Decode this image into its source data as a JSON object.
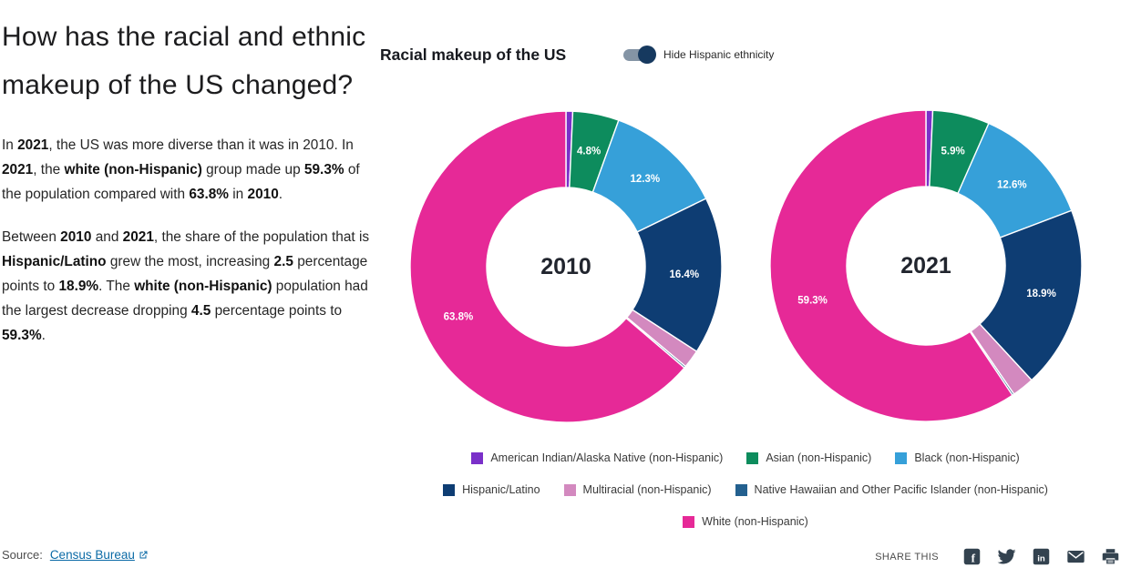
{
  "left": {
    "heading": "How has the racial and ethnic makeup of the US changed?",
    "paragraphs": [
      {
        "segments": [
          {
            "t": "In "
          },
          {
            "t": "2021",
            "b": 1
          },
          {
            "t": ", the US was more diverse than it was in 2010. In "
          },
          {
            "t": "2021",
            "b": 1
          },
          {
            "t": ", the "
          },
          {
            "t": "white (non-Hispanic)",
            "b": 1
          },
          {
            "t": " group made up "
          },
          {
            "t": "59.3%",
            "b": 1
          },
          {
            "t": " of the population compared with "
          },
          {
            "t": "63.8%",
            "b": 1
          },
          {
            "t": " in "
          },
          {
            "t": "2010",
            "b": 1
          },
          {
            "t": "."
          }
        ]
      },
      {
        "segments": [
          {
            "t": "Between "
          },
          {
            "t": "2010",
            "b": 1
          },
          {
            "t": " and "
          },
          {
            "t": "2021",
            "b": 1
          },
          {
            "t": ", the share of the population that is "
          },
          {
            "t": "Hispanic/Latino",
            "b": 1
          },
          {
            "t": " grew the most, increasing "
          },
          {
            "t": "2.5",
            "b": 1
          },
          {
            "t": " percentage points to "
          },
          {
            "t": "18.9%",
            "b": 1
          },
          {
            "t": ". The "
          },
          {
            "t": "white (non-Hispanic)",
            "b": 1
          },
          {
            "t": " population had the largest decrease dropping "
          },
          {
            "t": "4.5",
            "b": 1
          },
          {
            "t": " percentage points to "
          },
          {
            "t": "59.3%",
            "b": 1
          },
          {
            "t": "."
          }
        ]
      }
    ]
  },
  "source": {
    "label": "Source:",
    "link_text": "Census Bureau"
  },
  "chart_header": {
    "title": "Racial makeup of the US",
    "toggle_label": "Hide Hispanic ethnicity",
    "toggle_state": "on"
  },
  "chart_data": [
    {
      "type": "pie",
      "subtype": "donut",
      "title": "2010",
      "center_label": "2010",
      "categories": [
        "American Indian/Alaska Native (non-Hispanic)",
        "Asian (non-Hispanic)",
        "Black (non-Hispanic)",
        "Hispanic/Latino",
        "Multiracial (non-Hispanic)",
        "Native Hawaiian and Other Pacific Islander (non-Hispanic)",
        "White (non-Hispanic)"
      ],
      "values": [
        0.7,
        4.8,
        12.3,
        16.4,
        1.9,
        0.2,
        63.8
      ],
      "data_labels": [
        "",
        "4.8%",
        "12.3%",
        "16.4%",
        "",
        "",
        "63.8%"
      ],
      "colors": [
        "#7a30c9",
        "#0d8c5d",
        "#36a0d9",
        "#0e3d73",
        "#d389bf",
        "#23608f",
        "#e62997"
      ]
    },
    {
      "type": "pie",
      "subtype": "donut",
      "title": "2021",
      "center_label": "2021",
      "categories": [
        "American Indian/Alaska Native (non-Hispanic)",
        "Asian (non-Hispanic)",
        "Black (non-Hispanic)",
        "Hispanic/Latino",
        "Multiracial (non-Hispanic)",
        "Native Hawaiian and Other Pacific Islander (non-Hispanic)",
        "White (non-Hispanic)"
      ],
      "values": [
        0.7,
        5.9,
        12.6,
        18.9,
        2.3,
        0.2,
        59.3
      ],
      "data_labels": [
        "",
        "5.9%",
        "12.6%",
        "18.9%",
        "",
        "",
        "59.3%"
      ],
      "colors": [
        "#7a30c9",
        "#0d8c5d",
        "#36a0d9",
        "#0e3d73",
        "#d389bf",
        "#23608f",
        "#e62997"
      ]
    }
  ],
  "legend": {
    "rows": [
      [
        {
          "label": "American Indian/Alaska Native (non-Hispanic)",
          "color": "#7a30c9"
        },
        {
          "label": "Asian (non-Hispanic)",
          "color": "#0d8c5d"
        },
        {
          "label": "Black (non-Hispanic)",
          "color": "#36a0d9"
        }
      ],
      [
        {
          "label": "Hispanic/Latino",
          "color": "#0e3d73"
        },
        {
          "label": "Multiracial (non-Hispanic)",
          "color": "#d389bf"
        },
        {
          "label": "Native Hawaiian and Other Pacific Islander (non-Hispanic)",
          "color": "#23608f"
        }
      ],
      [
        {
          "label": "White (non-Hispanic)",
          "color": "#e62997"
        }
      ]
    ]
  },
  "share": {
    "label": "SHARE THIS",
    "icons": [
      "facebook",
      "twitter",
      "linkedin",
      "email",
      "print"
    ]
  }
}
